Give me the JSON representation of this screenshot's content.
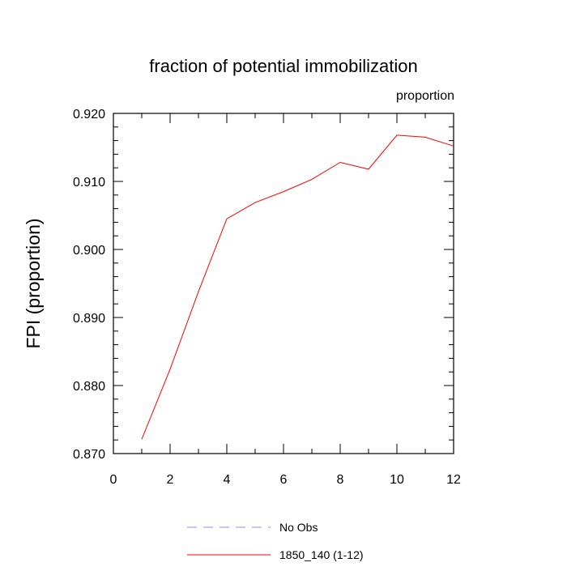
{
  "chart_data": {
    "type": "line",
    "title": "fraction of potential immobilization",
    "subtitle": "proportion",
    "ylabel": "FPI  (proportion)",
    "xlabel": "",
    "xlim": [
      0,
      12
    ],
    "ylim": [
      0.87,
      0.92
    ],
    "x_ticks": [
      0,
      2,
      4,
      6,
      8,
      10,
      12
    ],
    "x_tick_labels": [
      "0",
      "2",
      "4",
      "6",
      "8",
      "10",
      "12"
    ],
    "y_ticks": [
      0.87,
      0.88,
      0.89,
      0.9,
      0.91,
      0.92
    ],
    "y_tick_labels": [
      "0.870",
      "0.880",
      "0.890",
      "0.900",
      "0.910",
      "0.920"
    ],
    "grid": false,
    "legend_position": "bottom",
    "series": [
      {
        "name": "No Obs",
        "color": "#8c8cf0",
        "dash": "dashed",
        "x": [],
        "values": []
      },
      {
        "name": "1850_140 (1-12)",
        "color": "#ff0000",
        "dash": "solid",
        "x": [
          1,
          2,
          3,
          4,
          5,
          6,
          7,
          8,
          9,
          10,
          11,
          12
        ],
        "values": [
          0.8721,
          0.8824,
          0.8938,
          0.9045,
          0.9069,
          0.9085,
          0.9103,
          0.9128,
          0.9118,
          0.9168,
          0.9165,
          0.9152
        ]
      }
    ]
  }
}
